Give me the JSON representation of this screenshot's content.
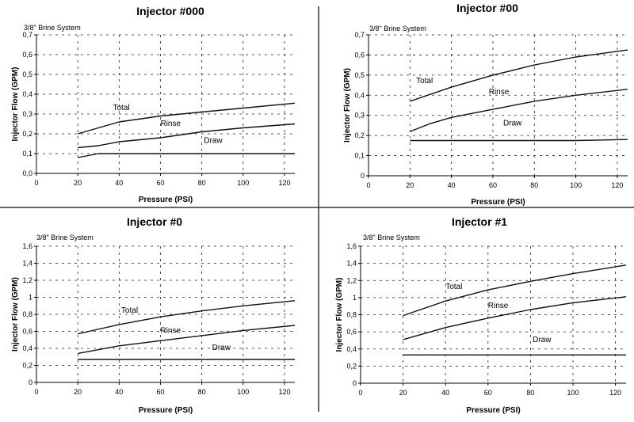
{
  "figure": {
    "colors": {
      "line": "#111111",
      "grid": "#222222",
      "divider": "#333333"
    }
  },
  "chart_data": [
    {
      "type": "line",
      "title": "Injector #000",
      "system_label": "3/8\" Brine System",
      "xlabel": "Pressure (PSI)",
      "ylabel": "Injector Flow (GPM)",
      "xlim": [
        0,
        125
      ],
      "ylim": [
        0,
        0.7
      ],
      "xticks": [
        0,
        20,
        40,
        60,
        80,
        100,
        120
      ],
      "xtick_labels": [
        "0",
        "20",
        "40",
        "60",
        "80",
        "100",
        "120"
      ],
      "yticks": [
        0,
        0.1,
        0.2,
        0.3,
        0.4,
        0.5,
        0.6,
        0.7
      ],
      "ytick_labels": [
        "0,0",
        "0,1",
        "0,2",
        "0,3",
        "0,4",
        "0,5",
        "0,6",
        "0,7"
      ],
      "grid": true,
      "series": [
        {
          "name": "Total",
          "x": [
            20,
            30,
            40,
            60,
            80,
            100,
            125
          ],
          "y": [
            0.2,
            0.23,
            0.26,
            0.29,
            0.31,
            0.33,
            0.355
          ],
          "label_at": [
            37,
            0.32
          ]
        },
        {
          "name": "Rinse",
          "x": [
            20,
            30,
            40,
            60,
            80,
            100,
            125
          ],
          "y": [
            0.13,
            0.14,
            0.16,
            0.18,
            0.21,
            0.23,
            0.25
          ],
          "label_at": [
            60,
            0.24
          ]
        },
        {
          "name": "Draw",
          "x": [
            20,
            25,
            30,
            40,
            60,
            80,
            100,
            125
          ],
          "y": [
            0.08,
            0.09,
            0.1,
            0.1,
            0.1,
            0.1,
            0.1,
            0.1
          ],
          "label_at": [
            81,
            0.155
          ]
        }
      ]
    },
    {
      "type": "line",
      "title": "Injector #00",
      "system_label": "3/8\" Brine System",
      "xlabel": "Pressure (PSI)",
      "ylabel": "Injector Flow (GPM)",
      "xlim": [
        0,
        125
      ],
      "ylim": [
        0,
        0.7
      ],
      "xticks": [
        0,
        20,
        40,
        60,
        80,
        100,
        120
      ],
      "xtick_labels": [
        "0",
        "20",
        "40",
        "60",
        "80",
        "100",
        "120"
      ],
      "yticks": [
        0,
        0.1,
        0.2,
        0.3,
        0.4,
        0.5,
        0.6,
        0.7
      ],
      "ytick_labels": [
        "0",
        "0,1",
        "0,2",
        "0,3",
        "0,4",
        "0,5",
        "0,6",
        "0,7"
      ],
      "grid": true,
      "series": [
        {
          "name": "Total",
          "x": [
            20,
            40,
            60,
            80,
            100,
            125
          ],
          "y": [
            0.37,
            0.44,
            0.5,
            0.55,
            0.59,
            0.625
          ],
          "label_at": [
            23,
            0.46
          ]
        },
        {
          "name": "Rinse",
          "x": [
            20,
            30,
            40,
            60,
            80,
            100,
            125
          ],
          "y": [
            0.22,
            0.26,
            0.29,
            0.33,
            0.37,
            0.4,
            0.43
          ],
          "label_at": [
            58,
            0.405
          ]
        },
        {
          "name": "Draw",
          "x": [
            20,
            40,
            60,
            80,
            100,
            125
          ],
          "y": [
            0.175,
            0.175,
            0.175,
            0.175,
            0.175,
            0.18
          ],
          "label_at": [
            65,
            0.25
          ]
        }
      ]
    },
    {
      "type": "line",
      "title": "Injector #0",
      "system_label": "3/8\" Brine System",
      "xlabel": "Pressure (PSI)",
      "ylabel": "Injector Flow (GPM)",
      "xlim": [
        0,
        125
      ],
      "ylim": [
        0,
        1.6
      ],
      "xticks": [
        0,
        20,
        40,
        60,
        80,
        100,
        120
      ],
      "xtick_labels": [
        "0",
        "20",
        "40",
        "60",
        "80",
        "100",
        "120"
      ],
      "yticks": [
        0,
        0.2,
        0.4,
        0.6,
        0.8,
        1,
        1.2,
        1.4,
        1.6
      ],
      "ytick_labels": [
        "0",
        "0,2",
        "0,4",
        "0,6",
        "0,8",
        "1",
        "1,2",
        "1,4",
        "1,6"
      ],
      "grid": true,
      "series": [
        {
          "name": "Total",
          "x": [
            20,
            40,
            60,
            80,
            100,
            125
          ],
          "y": [
            0.57,
            0.68,
            0.77,
            0.84,
            0.9,
            0.96
          ],
          "label_at": [
            41,
            0.82
          ]
        },
        {
          "name": "Rinse",
          "x": [
            20,
            40,
            60,
            80,
            100,
            125
          ],
          "y": [
            0.34,
            0.43,
            0.49,
            0.55,
            0.61,
            0.67
          ],
          "label_at": [
            60,
            0.58
          ]
        },
        {
          "name": "Draw",
          "x": [
            20,
            40,
            60,
            80,
            100,
            125
          ],
          "y": [
            0.27,
            0.27,
            0.27,
            0.27,
            0.27,
            0.27
          ],
          "label_at": [
            85,
            0.38
          ]
        }
      ]
    },
    {
      "type": "line",
      "title": "Injector #1",
      "system_label": "3/8\" Brine System",
      "xlabel": "Pressure (PSI)",
      "ylabel": "Injector Flow (GPM)",
      "xlim": [
        0,
        125
      ],
      "ylim": [
        0,
        1.6
      ],
      "xticks": [
        0,
        20,
        40,
        60,
        80,
        100,
        120
      ],
      "xtick_labels": [
        "0",
        "20",
        "40",
        "60",
        "80",
        "100",
        "120"
      ],
      "yticks": [
        0,
        0.2,
        0.4,
        0.6,
        0.8,
        1,
        1.2,
        1.4,
        1.6
      ],
      "ytick_labels": [
        "0",
        "0,2",
        "0,4",
        "0,6",
        "0,8",
        "1",
        "1,2",
        "1,4",
        "1,6"
      ],
      "grid": true,
      "series": [
        {
          "name": "Total",
          "x": [
            20,
            40,
            60,
            80,
            100,
            125
          ],
          "y": [
            0.79,
            0.96,
            1.09,
            1.19,
            1.28,
            1.38
          ],
          "label_at": [
            40,
            1.1
          ]
        },
        {
          "name": "Rinse",
          "x": [
            20,
            40,
            60,
            80,
            100,
            125
          ],
          "y": [
            0.51,
            0.65,
            0.76,
            0.86,
            0.94,
            1.01
          ],
          "label_at": [
            60,
            0.88
          ]
        },
        {
          "name": "Draw",
          "x": [
            20,
            40,
            60,
            80,
            100,
            125
          ],
          "y": [
            0.33,
            0.33,
            0.33,
            0.33,
            0.33,
            0.33
          ],
          "label_at": [
            81,
            0.48
          ]
        }
      ]
    }
  ]
}
